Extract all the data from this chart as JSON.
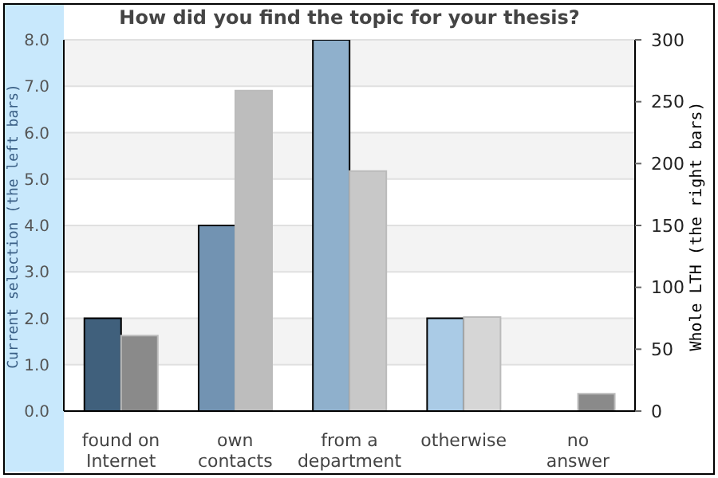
{
  "chart_data": {
    "type": "bar",
    "title": "How did you find the topic for your thesis?",
    "ylabel": "Current selection (the left bars)",
    "y2label": "Whole LTH (the right bars)",
    "categories": [
      "found on\nInternet",
      "own\ncontacts",
      "from a\ndepartment",
      "otherwise",
      "no\nanswer"
    ],
    "series": [
      {
        "colors": [
          "#40607c",
          "#7293b2",
          "#8fb0cc",
          "#aacbe6",
          "#aacbe6"
        ],
        "values": [
          2,
          4,
          8,
          2,
          0
        ]
      },
      {
        "axis": "y2",
        "colors": [
          "#8a8a8a",
          "#bdbdbd",
          "#c8c8c8",
          "#d6d6d6",
          "#8a8a8a"
        ],
        "values": [
          61,
          259,
          194,
          76,
          14
        ]
      }
    ],
    "ylim": [
      0,
      8
    ],
    "yticks": [
      {
        "value": 0,
        "label": "0.0"
      },
      {
        "value": 1,
        "label": "1.0"
      },
      {
        "value": 2,
        "label": "2.0"
      },
      {
        "value": 3,
        "label": "3.0"
      },
      {
        "value": 4,
        "label": "4.0"
      },
      {
        "value": 5,
        "label": "5.0"
      },
      {
        "value": 6,
        "label": "6.0"
      },
      {
        "value": 7,
        "label": "7.0"
      },
      {
        "value": 8,
        "label": "8.0"
      }
    ],
    "y2lim": [
      0,
      300
    ],
    "y2ticks": [
      0,
      50,
      100,
      150,
      200,
      250,
      300
    ],
    "grid": "y",
    "legend": false
  }
}
